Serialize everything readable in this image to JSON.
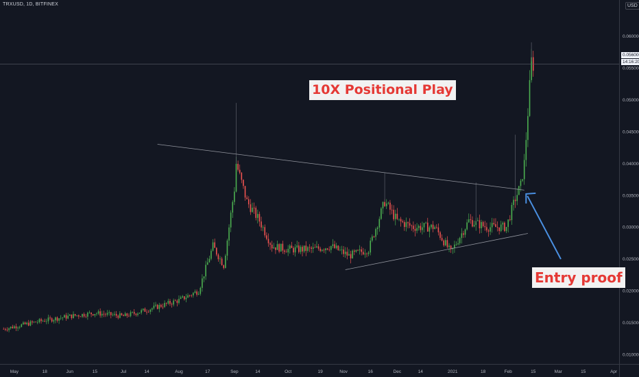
{
  "header": {
    "symbol": "TRXUSD, 1D, BITFINEX",
    "currency": "USD"
  },
  "annotations": {
    "title": "10X Positional Play",
    "entry": "Entry proof"
  },
  "price_tag": {
    "price": "0.056000",
    "countdown": "14:16:20"
  },
  "colors": {
    "background": "#131722",
    "up": "#26a69a",
    "up_bright": "#4caf50",
    "down": "#ef5350",
    "trendline": "#9598a1",
    "arrow": "#4a90e2",
    "annotation_text": "#e53935",
    "annotation_bg": "#f2f2f2"
  },
  "chart_data": {
    "type": "candlestick",
    "title": "",
    "xlabel": "",
    "ylabel": "",
    "ylim": [
      0.0085,
      0.0635
    ],
    "x_tick_labels": [
      "May",
      "18",
      "Jun",
      "15",
      "Jul",
      "14",
      "Aug",
      "17",
      "Sep",
      "14",
      "Oct",
      "19",
      "Nov",
      "16",
      "Dec",
      "14",
      "2021",
      "18",
      "Feb",
      "15",
      "Mar",
      "15",
      "Apr"
    ],
    "y_tick_labels": [
      "0.060000",
      "0.055000",
      "0.050000",
      "0.045000",
      "0.040000",
      "0.035000",
      "0.030000",
      "0.025000",
      "0.020000",
      "0.015000",
      "0.010000"
    ],
    "grid": false,
    "trendlines": [
      {
        "name": "upper",
        "from": [
          "2020-07-20",
          0.043
        ],
        "to": [
          "2021-02-10",
          0.0358
        ]
      },
      {
        "name": "lower",
        "from": [
          "2020-11-02",
          0.0233
        ],
        "to": [
          "2021-02-12",
          0.029
        ]
      }
    ],
    "anchors": [
      [
        "2020-04-25",
        0.014
      ],
      [
        "2020-05-15",
        0.0152
      ],
      [
        "2020-06-01",
        0.016
      ],
      [
        "2020-06-15",
        0.0165
      ],
      [
        "2020-07-01",
        0.016
      ],
      [
        "2020-07-14",
        0.017
      ],
      [
        "2020-08-01",
        0.0185
      ],
      [
        "2020-08-12",
        0.02
      ],
      [
        "2020-08-20",
        0.027
      ],
      [
        "2020-08-26",
        0.024
      ],
      [
        "2020-09-01",
        0.036
      ],
      [
        "2020-09-02",
        0.04
      ],
      [
        "2020-09-08",
        0.034
      ],
      [
        "2020-09-15",
        0.031
      ],
      [
        "2020-09-22",
        0.027
      ],
      [
        "2020-10-01",
        0.0265
      ],
      [
        "2020-10-15",
        0.0265
      ],
      [
        "2020-10-25",
        0.027
      ],
      [
        "2020-11-04",
        0.0255
      ],
      [
        "2020-11-15",
        0.0265
      ],
      [
        "2020-11-24",
        0.034
      ],
      [
        "2020-12-01",
        0.031
      ],
      [
        "2020-12-10",
        0.03
      ],
      [
        "2020-12-22",
        0.03
      ],
      [
        "2020-12-31",
        0.026
      ],
      [
        "2021-01-10",
        0.031
      ],
      [
        "2021-01-20",
        0.03
      ],
      [
        "2021-01-31",
        0.03
      ],
      [
        "2021-02-05",
        0.0345
      ],
      [
        "2021-02-08",
        0.0365
      ],
      [
        "2021-02-10",
        0.04
      ],
      [
        "2021-02-12",
        0.048
      ],
      [
        "2021-02-14",
        0.056
      ],
      [
        "2021-02-15",
        0.0555
      ]
    ]
  }
}
